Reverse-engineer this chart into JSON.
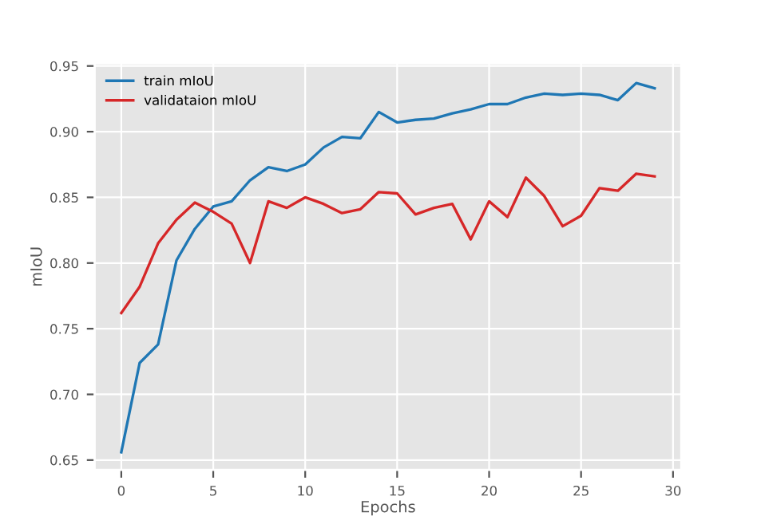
{
  "chart_data": {
    "type": "line",
    "xlabel": "Epochs",
    "ylabel": "mIoU",
    "x": [
      0,
      1,
      2,
      3,
      4,
      5,
      6,
      7,
      8,
      9,
      10,
      11,
      12,
      13,
      14,
      15,
      16,
      17,
      18,
      19,
      20,
      21,
      22,
      23,
      24,
      25,
      26,
      27,
      28,
      29
    ],
    "series": [
      {
        "name": "train mIoU",
        "color": "#1f77b4",
        "values": [
          0.656,
          0.724,
          0.738,
          0.802,
          0.826,
          0.843,
          0.847,
          0.863,
          0.873,
          0.87,
          0.875,
          0.888,
          0.896,
          0.895,
          0.915,
          0.907,
          0.909,
          0.91,
          0.914,
          0.917,
          0.921,
          0.921,
          0.926,
          0.929,
          0.928,
          0.929,
          0.928,
          0.924,
          0.937,
          0.933
        ]
      },
      {
        "name": "validataion mIoU",
        "color": "#d62728",
        "values": [
          0.762,
          0.782,
          0.815,
          0.833,
          0.846,
          0.839,
          0.83,
          0.8,
          0.847,
          0.842,
          0.85,
          0.845,
          0.838,
          0.841,
          0.854,
          0.853,
          0.837,
          0.842,
          0.845,
          0.818,
          0.847,
          0.835,
          0.865,
          0.851,
          0.828,
          0.836,
          0.857,
          0.855,
          0.868,
          0.866
        ]
      }
    ],
    "xlim": [
      -1.45,
      30.45
    ],
    "ylim": [
      0.6425,
      0.952
    ],
    "xticks": [
      0,
      5,
      10,
      15,
      20,
      25,
      30
    ],
    "yticks": [
      {
        "value": 0.65,
        "label": "0.65"
      },
      {
        "value": 0.7,
        "label": "0.70"
      },
      {
        "value": 0.75,
        "label": "0.75"
      },
      {
        "value": 0.8,
        "label": "0.80"
      },
      {
        "value": 0.85,
        "label": "0.85"
      },
      {
        "value": 0.9,
        "label": "0.90"
      },
      {
        "value": 0.95,
        "label": "0.95"
      }
    ],
    "grid": true,
    "legend": "upper left",
    "marker": "none",
    "line_style": "solid"
  }
}
